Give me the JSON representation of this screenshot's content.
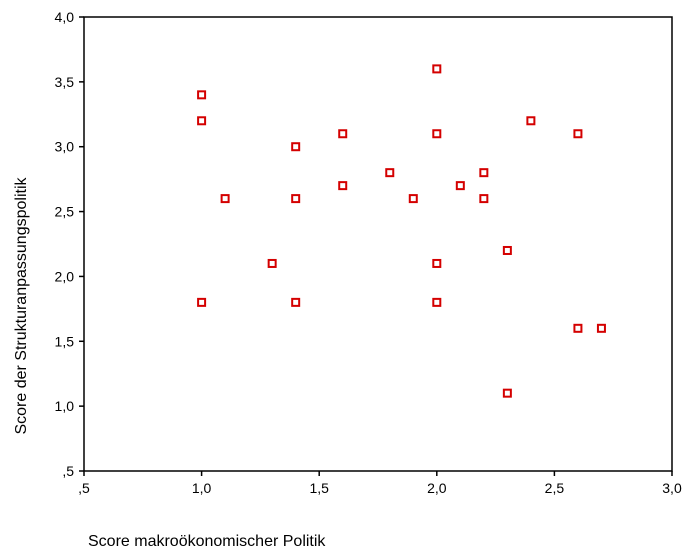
{
  "chart_data": {
    "type": "scatter",
    "xlabel": "Score makroökonomischer Politik",
    "ylabel": "Score der Strukturanpassungspolitik",
    "xlim": [
      0.5,
      3.0
    ],
    "ylim": [
      0.5,
      4.0
    ],
    "x_ticks": [
      ",5",
      "1,0",
      "1,5",
      "2,0",
      "2,5",
      "3,0"
    ],
    "y_ticks": [
      ",5",
      "1,0",
      "1,5",
      "2,0",
      "2,5",
      "3,0",
      "3,5",
      "4,0"
    ],
    "grid": false,
    "marker_color": "#d40000",
    "points": [
      {
        "x": 1.0,
        "y": 3.4
      },
      {
        "x": 1.0,
        "y": 3.2
      },
      {
        "x": 1.0,
        "y": 1.8
      },
      {
        "x": 1.1,
        "y": 2.6
      },
      {
        "x": 1.3,
        "y": 2.1
      },
      {
        "x": 1.4,
        "y": 3.0
      },
      {
        "x": 1.4,
        "y": 2.6
      },
      {
        "x": 1.4,
        "y": 1.8
      },
      {
        "x": 1.6,
        "y": 3.1
      },
      {
        "x": 1.6,
        "y": 2.7
      },
      {
        "x": 1.8,
        "y": 2.8
      },
      {
        "x": 1.9,
        "y": 2.6
      },
      {
        "x": 2.0,
        "y": 3.6
      },
      {
        "x": 2.0,
        "y": 3.1
      },
      {
        "x": 2.0,
        "y": 2.1
      },
      {
        "x": 2.0,
        "y": 1.8
      },
      {
        "x": 2.1,
        "y": 2.7
      },
      {
        "x": 2.2,
        "y": 2.8
      },
      {
        "x": 2.2,
        "y": 2.6
      },
      {
        "x": 2.3,
        "y": 2.2
      },
      {
        "x": 2.3,
        "y": 1.1
      },
      {
        "x": 2.4,
        "y": 3.2
      },
      {
        "x": 2.6,
        "y": 3.1
      },
      {
        "x": 2.6,
        "y": 1.6
      },
      {
        "x": 2.7,
        "y": 1.6
      }
    ]
  }
}
